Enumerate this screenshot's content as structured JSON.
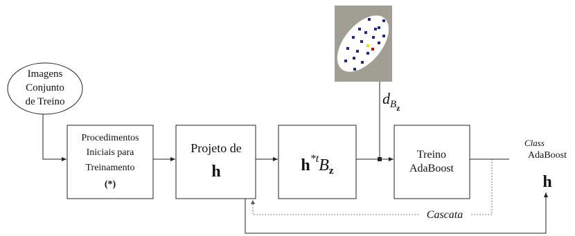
{
  "nodes": [
    {
      "lines": [
        "Imagens",
        "Conjunto",
        "de Treino"
      ]
    },
    {
      "lines": [
        "Procedimentos",
        "Iniciais para",
        "Treinamento",
        "(*)"
      ]
    },
    {
      "lines": [
        "Projeto de"
      ],
      "symbol": "h"
    },
    {
      "symbol": "h",
      "sup": "*t",
      "var": "B",
      "sub": "z"
    },
    {
      "lines": [
        "Treino",
        "AdaBoost"
      ]
    }
  ],
  "output": {
    "class": "Class",
    "name": "AdaBoost",
    "symbol": "h"
  },
  "feature_label": {
    "var": "d",
    "sub": "B",
    "subsub": "z"
  },
  "loop_label": "Cascata"
}
